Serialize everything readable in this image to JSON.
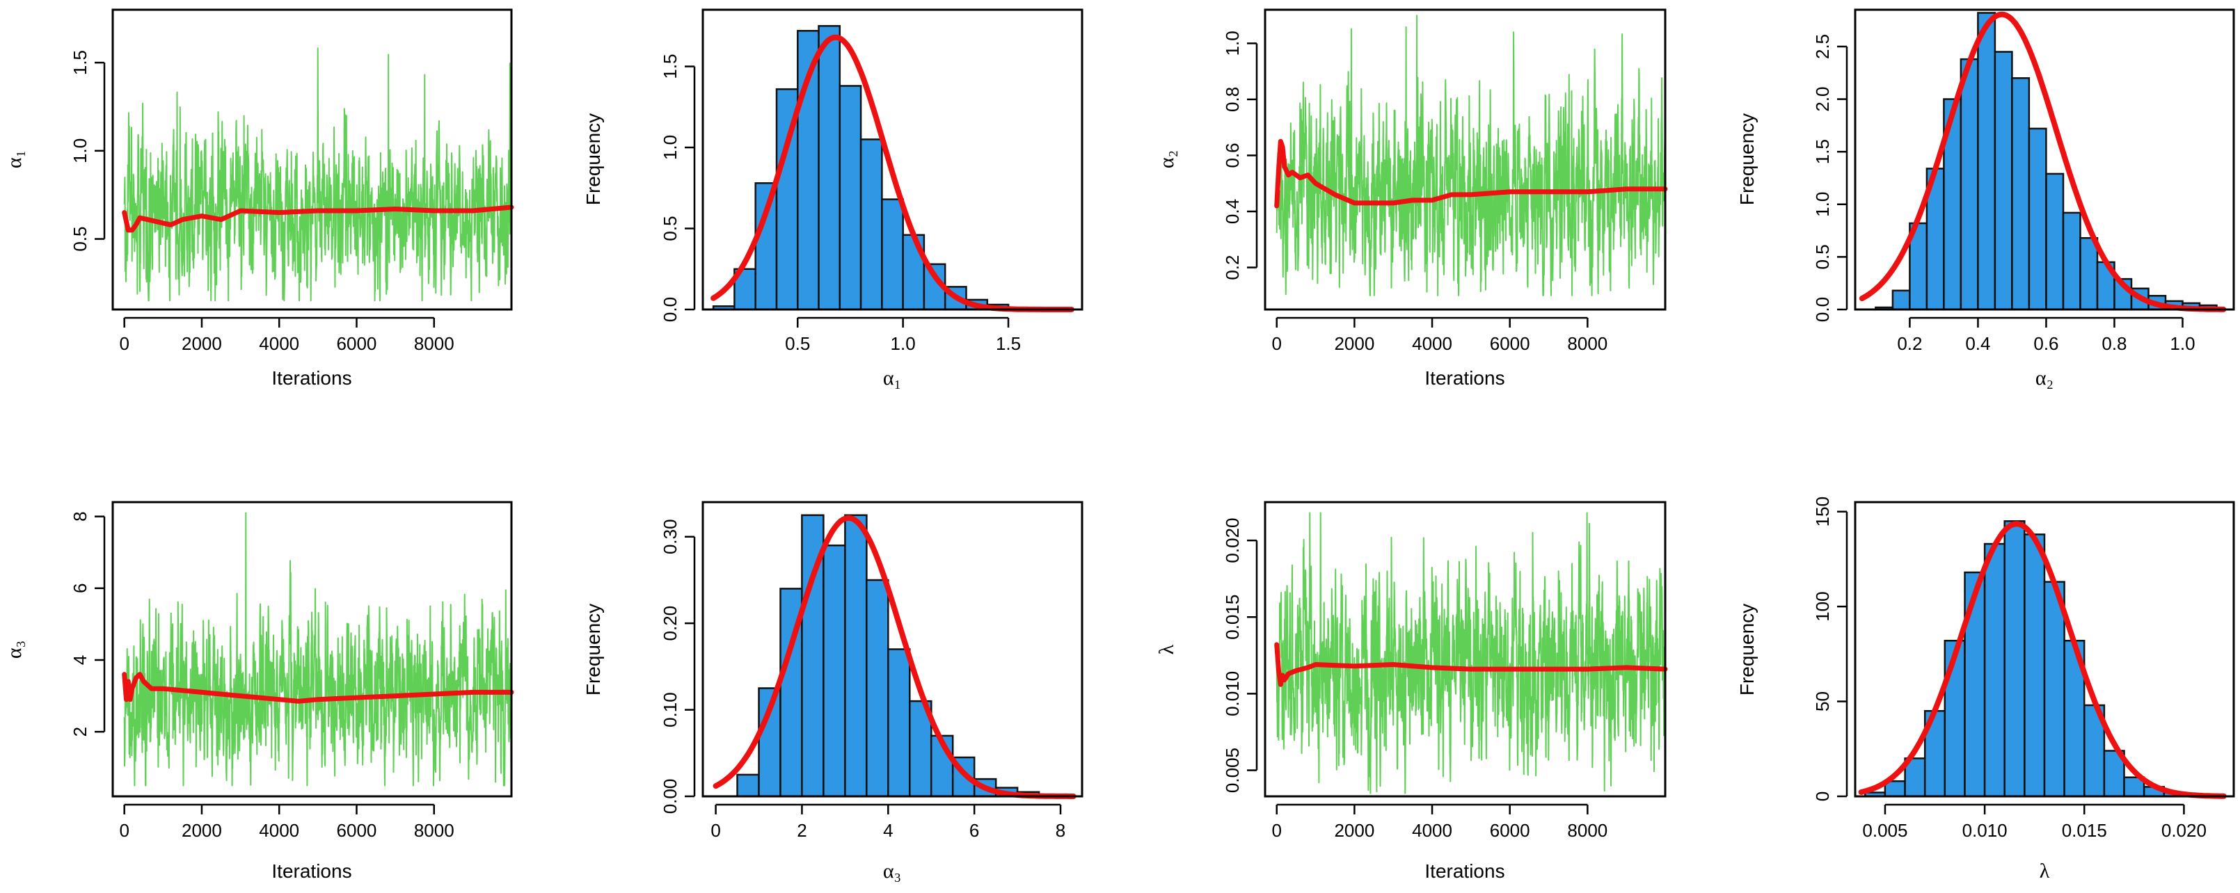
{
  "colors": {
    "trace": "#5fd055",
    "running_mean": "#ee1111",
    "bar_fill": "#2f97e3",
    "bar_stroke": "#111111",
    "density": "#ee1111",
    "frame": "#000000"
  },
  "chart_data": [
    {
      "id": "trace-alpha1",
      "type": "line",
      "xlabel": "Iterations",
      "ylabel": "α₁",
      "xlim": [
        -300,
        10000
      ],
      "ylim": [
        0.1,
        1.8
      ],
      "xticks": [
        0,
        2000,
        4000,
        6000,
        8000
      ],
      "xtick_labels": [
        "0",
        "2000",
        "4000",
        "6000",
        "8000"
      ],
      "yticks": [
        0.5,
        1.0,
        1.5
      ],
      "ytick_labels": [
        "0.5",
        "1.0",
        "1.5"
      ],
      "n_iterations": 10000,
      "series": [
        {
          "name": "sampled values",
          "color": "trace",
          "center": 0.66,
          "spread": 0.2,
          "min": 0.15,
          "max": 1.73
        },
        {
          "name": "running mean",
          "color": "running_mean",
          "x": [
            0,
            100,
            200,
            300,
            400,
            600,
            800,
            1000,
            1200,
            1500,
            2000,
            2500,
            3000,
            4000,
            5000,
            6000,
            7000,
            8000,
            9000,
            10000
          ],
          "values": [
            0.65,
            0.55,
            0.55,
            0.58,
            0.62,
            0.61,
            0.6,
            0.59,
            0.58,
            0.61,
            0.63,
            0.61,
            0.66,
            0.65,
            0.66,
            0.66,
            0.67,
            0.66,
            0.66,
            0.68
          ]
        }
      ]
    },
    {
      "id": "hist-alpha1",
      "type": "bar",
      "xlabel": "α₁",
      "ylabel": "Frequency",
      "xlim": [
        0.05,
        1.85
      ],
      "ylim": [
        0,
        1.85
      ],
      "xticks": [
        0.5,
        1.0,
        1.5
      ],
      "xtick_labels": [
        "0.5",
        "1.0",
        "1.5"
      ],
      "yticks": [
        0,
        0.5,
        1.0,
        1.5
      ],
      "ytick_labels": [
        "0.0",
        "0.5",
        "1.0",
        "1.5"
      ],
      "bin_start": 0.1,
      "bin_width": 0.1,
      "values": [
        0.02,
        0.25,
        0.78,
        1.36,
        1.72,
        1.75,
        1.38,
        1.05,
        0.68,
        0.46,
        0.28,
        0.14,
        0.06,
        0.03,
        0.01
      ],
      "density": {
        "type": "normal",
        "mean": 0.68,
        "sd": 0.23,
        "scale": 0.96,
        "range": [
          0.1,
          1.8
        ],
        "color": "density"
      }
    },
    {
      "id": "trace-alpha2",
      "type": "line",
      "xlabel": "Iterations",
      "ylabel": "α₂",
      "xlim": [
        -300,
        10000
      ],
      "ylim": [
        0.05,
        1.12
      ],
      "xticks": [
        0,
        2000,
        4000,
        6000,
        8000
      ],
      "xtick_labels": [
        "0",
        "2000",
        "4000",
        "6000",
        "8000"
      ],
      "yticks": [
        0.2,
        0.4,
        0.6,
        0.8,
        1.0
      ],
      "ytick_labels": [
        "0.2",
        "0.4",
        "0.6",
        "0.8",
        "1.0"
      ],
      "n_iterations": 10000,
      "series": [
        {
          "name": "sampled values",
          "color": "trace",
          "center": 0.47,
          "spread": 0.15,
          "min": 0.1,
          "max": 1.1
        },
        {
          "name": "running mean",
          "color": "running_mean",
          "x": [
            0,
            50,
            100,
            150,
            200,
            300,
            400,
            600,
            800,
            1000,
            1500,
            2000,
            2500,
            3000,
            3500,
            4000,
            4500,
            5000,
            6000,
            7000,
            8000,
            9000,
            10000
          ],
          "values": [
            0.42,
            0.55,
            0.65,
            0.63,
            0.56,
            0.53,
            0.54,
            0.52,
            0.53,
            0.5,
            0.46,
            0.43,
            0.43,
            0.43,
            0.44,
            0.44,
            0.46,
            0.46,
            0.47,
            0.47,
            0.47,
            0.48,
            0.48
          ]
        }
      ]
    },
    {
      "id": "hist-alpha2",
      "type": "bar",
      "xlabel": "α₂",
      "ylabel": "Frequency",
      "xlim": [
        0.04,
        1.15
      ],
      "ylim": [
        0,
        2.85
      ],
      "xticks": [
        0.2,
        0.4,
        0.6,
        0.8,
        1.0
      ],
      "xtick_labels": [
        "0.2",
        "0.4",
        "0.6",
        "0.8",
        "1.0"
      ],
      "yticks": [
        0,
        0.5,
        1.0,
        1.5,
        2.0,
        2.5
      ],
      "ytick_labels": [
        "0.0",
        "0.5",
        "1.0",
        "1.5",
        "2.0",
        "2.5"
      ],
      "bin_start": 0.1,
      "bin_width": 0.05,
      "values": [
        0.02,
        0.18,
        0.82,
        1.34,
        2.0,
        2.38,
        2.82,
        2.45,
        2.2,
        1.72,
        1.29,
        0.92,
        0.68,
        0.45,
        0.29,
        0.2,
        0.13,
        0.08,
        0.06,
        0.04
      ],
      "density": {
        "type": "normal",
        "mean": 0.47,
        "sd": 0.16,
        "scale": 0.995,
        "range": [
          0.06,
          1.12
        ],
        "color": "density"
      }
    },
    {
      "id": "trace-alpha3",
      "type": "line",
      "xlabel": "Iterations",
      "ylabel": "α₃",
      "xlim": [
        -300,
        10000
      ],
      "ylim": [
        0.2,
        8.4
      ],
      "xticks": [
        0,
        2000,
        4000,
        6000,
        8000
      ],
      "xtick_labels": [
        "0",
        "2000",
        "4000",
        "6000",
        "8000"
      ],
      "yticks": [
        2,
        4,
        6,
        8
      ],
      "ytick_labels": [
        "2",
        "4",
        "6",
        "8"
      ],
      "n_iterations": 10000,
      "series": [
        {
          "name": "sampled values",
          "color": "trace",
          "center": 3.05,
          "spread": 1.0,
          "min": 0.5,
          "max": 8.1
        },
        {
          "name": "running mean",
          "color": "running_mean",
          "x": [
            0,
            50,
            100,
            150,
            200,
            300,
            400,
            500,
            700,
            1000,
            1500,
            2000,
            3000,
            4000,
            4500,
            5000,
            6000,
            7000,
            8000,
            9000,
            10000
          ],
          "values": [
            3.6,
            2.9,
            3.4,
            2.9,
            3.2,
            3.5,
            3.6,
            3.4,
            3.2,
            3.2,
            3.15,
            3.1,
            3.0,
            2.9,
            2.85,
            2.9,
            2.95,
            3.0,
            3.05,
            3.1,
            3.1
          ]
        }
      ]
    },
    {
      "id": "hist-alpha3",
      "type": "bar",
      "xlabel": "α₃",
      "ylabel": "Frequency",
      "xlim": [
        -0.3,
        8.5
      ],
      "ylim": [
        0,
        0.34
      ],
      "xticks": [
        0,
        2,
        4,
        6,
        8
      ],
      "xtick_labels": [
        "0",
        "2",
        "4",
        "6",
        "8"
      ],
      "yticks": [
        0,
        0.1,
        0.2,
        0.3
      ],
      "ytick_labels": [
        "0.00",
        "0.10",
        "0.20",
        "0.30"
      ],
      "bin_start": 0,
      "bin_width": 0.5,
      "values": [
        0.0,
        0.025,
        0.125,
        0.24,
        0.325,
        0.29,
        0.325,
        0.25,
        0.17,
        0.11,
        0.07,
        0.045,
        0.02,
        0.01,
        0.005
      ],
      "density": {
        "type": "normal",
        "mean": 3.08,
        "sd": 1.2,
        "scale": 0.99,
        "range": [
          0,
          8.3
        ],
        "color": "density"
      }
    },
    {
      "id": "trace-lambda",
      "type": "line",
      "xlabel": "Iterations",
      "ylabel": "λ",
      "xlim": [
        -300,
        10000
      ],
      "ylim": [
        0.0033,
        0.0225
      ],
      "xticks": [
        0,
        2000,
        4000,
        6000,
        8000
      ],
      "xtick_labels": [
        "0",
        "2000",
        "4000",
        "6000",
        "8000"
      ],
      "yticks": [
        0.005,
        0.01,
        0.015,
        0.02
      ],
      "ytick_labels": [
        "0.005",
        "0.010",
        "0.015",
        "0.020"
      ],
      "n_iterations": 10000,
      "series": [
        {
          "name": "sampled values",
          "color": "trace",
          "center": 0.0117,
          "spread": 0.0028,
          "min": 0.0035,
          "max": 0.0218
        },
        {
          "name": "running mean",
          "color": "running_mean",
          "x": [
            0,
            50,
            100,
            150,
            200,
            300,
            500,
            800,
            1000,
            2000,
            3000,
            4000,
            5000,
            6000,
            7000,
            8000,
            9000,
            10000
          ],
          "values": [
            0.0132,
            0.0115,
            0.0106,
            0.0112,
            0.0109,
            0.0113,
            0.0115,
            0.0117,
            0.0119,
            0.0118,
            0.0119,
            0.0117,
            0.0116,
            0.0116,
            0.0116,
            0.0116,
            0.0117,
            0.0116
          ]
        }
      ]
    },
    {
      "id": "hist-lambda",
      "type": "bar",
      "xlabel": "λ",
      "ylabel": "Frequency",
      "xlim": [
        0.0035,
        0.0225
      ],
      "ylim": [
        0,
        155
      ],
      "xticks": [
        0.005,
        0.01,
        0.015,
        0.02
      ],
      "xtick_labels": [
        "0.005",
        "0.010",
        "0.015",
        "0.020"
      ],
      "yticks": [
        0,
        50,
        100,
        150
      ],
      "ytick_labels": [
        "0",
        "50",
        "100",
        "150"
      ],
      "bin_start": 0.004,
      "bin_width": 0.001,
      "values": [
        2,
        8,
        20,
        45,
        82,
        118,
        133,
        145,
        138,
        113,
        82,
        48,
        24,
        10,
        5,
        2,
        1,
        0
      ],
      "density": {
        "type": "normal",
        "mean": 0.0116,
        "sd": 0.0027,
        "scale": 0.99,
        "range": [
          0.0038,
          0.022
        ],
        "color": "density"
      }
    }
  ]
}
